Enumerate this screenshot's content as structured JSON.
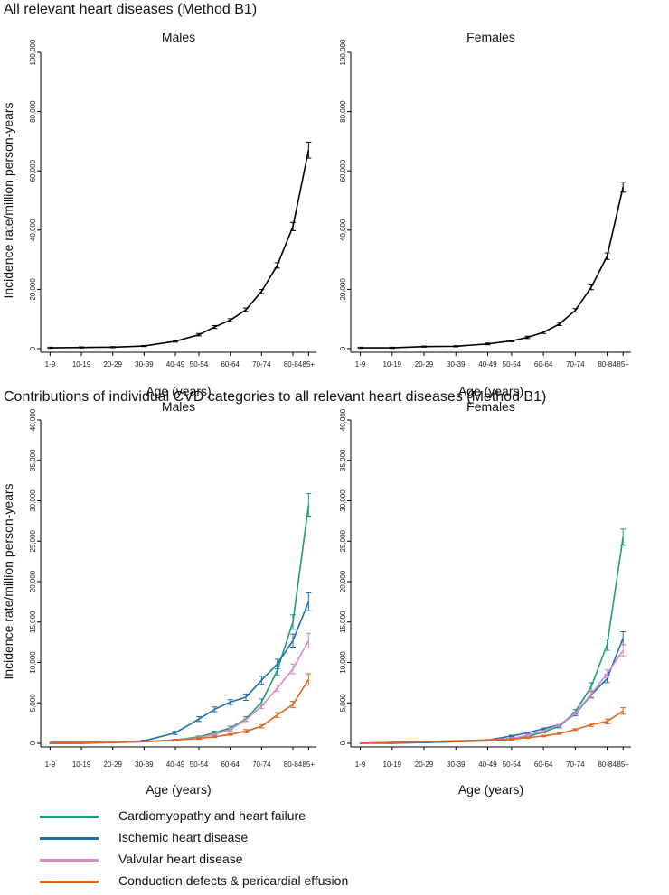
{
  "sections": {
    "top_title": "All relevant heart diseases (Method B1)",
    "bottom_title": "Contributions of individual CVD categories to all relevant heart diseases (Method B1)"
  },
  "legend": [
    {
      "label": "Cardiomyopathy and heart failure",
      "color": "#1b9e77"
    },
    {
      "label": "Ischemic heart disease",
      "color": "#1f6fad"
    },
    {
      "label": "Valvular heart disease",
      "color": "#d889c8"
    },
    {
      "label": "Conduction defects & pericardial effusion",
      "color": "#e0661f"
    }
  ],
  "chart_data": [
    {
      "type": "line",
      "title": "Males",
      "xlabel": "Age (years)",
      "ylabel": "Incidence rate/million person-years",
      "ylim": [
        0,
        100000
      ],
      "yticks": [
        0,
        20000,
        40000,
        60000,
        80000,
        100000
      ],
      "ytick_labels": [
        "0",
        "20,000",
        "40,000",
        "60,000",
        "80,000",
        "100,000"
      ],
      "categories": [
        "1-9",
        "10-19",
        "20-29",
        "30-39",
        "40-49",
        "50-54",
        "55-59",
        "60-64",
        "65-69",
        "70-74",
        "75-79",
        "80-84",
        "85+"
      ],
      "x": [
        5,
        15,
        25,
        35,
        45,
        52.5,
        57.5,
        62.5,
        67.5,
        72.5,
        77.5,
        82.5,
        87.5
      ],
      "xticks": [
        5,
        15,
        25,
        35,
        45,
        52.5,
        62.5,
        72.5,
        82.5,
        87.5
      ],
      "xtick_labels": [
        "1-9",
        "10-19",
        "20-29",
        "30-39",
        "40-49",
        "50-54",
        "60-64",
        "70-74",
        "80-84",
        "85+"
      ],
      "series": [
        {
          "name": "All relevant heart diseases",
          "color": "#000000",
          "values": [
            300,
            400,
            500,
            900,
            2500,
            4700,
            7300,
            9600,
            13100,
            19300,
            28100,
            41200,
            67000
          ],
          "ci": [
            200,
            200,
            200,
            200,
            300,
            400,
            500,
            500,
            600,
            700,
            900,
            1400,
            2700
          ]
        }
      ]
    },
    {
      "type": "line",
      "title": "Females",
      "xlabel": "Age (years)",
      "ylabel": "",
      "ylim": [
        0,
        100000
      ],
      "yticks": [
        0,
        20000,
        40000,
        60000,
        80000,
        100000
      ],
      "ytick_labels": [
        "0",
        "20,000",
        "40,000",
        "60,000",
        "80,000",
        "100,000"
      ],
      "categories": [
        "1-9",
        "10-19",
        "20-29",
        "30-39",
        "40-49",
        "50-54",
        "55-59",
        "60-64",
        "65-69",
        "70-74",
        "75-79",
        "80-84",
        "85+"
      ],
      "x": [
        5,
        15,
        25,
        35,
        45,
        52.5,
        57.5,
        62.5,
        67.5,
        72.5,
        77.5,
        82.5,
        87.5
      ],
      "xticks": [
        5,
        15,
        25,
        35,
        45,
        52.5,
        62.5,
        72.5,
        82.5,
        87.5
      ],
      "xtick_labels": [
        "1-9",
        "10-19",
        "20-29",
        "30-39",
        "40-49",
        "50-54",
        "60-64",
        "70-74",
        "80-84",
        "85+"
      ],
      "series": [
        {
          "name": "All relevant heart diseases",
          "color": "#000000",
          "values": [
            300,
            300,
            700,
            800,
            1600,
            2600,
            3800,
            5500,
            8300,
            12900,
            20700,
            31200,
            54500
          ],
          "ci": [
            200,
            200,
            200,
            200,
            300,
            300,
            400,
            400,
            500,
            600,
            800,
            1100,
            1700
          ]
        }
      ]
    },
    {
      "type": "line",
      "title": "Males",
      "xlabel": "Age (years)",
      "ylabel": "Incidence rate/million person-years",
      "ylim": [
        0,
        40000
      ],
      "yticks": [
        0,
        5000,
        10000,
        15000,
        20000,
        25000,
        30000,
        35000,
        40000
      ],
      "ytick_labels": [
        "0",
        "5,000",
        "10,000",
        "15,000",
        "20,000",
        "25,000",
        "30,000",
        "35,000",
        "40,000"
      ],
      "categories": [
        "1-9",
        "10-19",
        "20-29",
        "30-39",
        "40-49",
        "50-54",
        "55-59",
        "60-64",
        "65-69",
        "70-74",
        "75-79",
        "80-84",
        "85+"
      ],
      "x": [
        5,
        15,
        25,
        35,
        45,
        52.5,
        57.5,
        62.5,
        67.5,
        72.5,
        77.5,
        82.5,
        87.5
      ],
      "xticks": [
        5,
        15,
        25,
        35,
        45,
        52.5,
        62.5,
        72.5,
        82.5,
        87.5
      ],
      "xtick_labels": [
        "1-9",
        "10-19",
        "20-29",
        "30-39",
        "40-49",
        "50-54",
        "60-64",
        "70-74",
        "80-84",
        "85+"
      ],
      "series": [
        {
          "name": "Cardiomyopathy and heart failure",
          "color": "#1b9e77",
          "values": [
            100,
            100,
            100,
            200,
            400,
            800,
            1300,
            1900,
            3000,
            5100,
            9000,
            15000,
            29500
          ],
          "ci": [
            0,
            0,
            0,
            0,
            100,
            100,
            200,
            200,
            300,
            400,
            600,
            900,
            1400
          ]
        },
        {
          "name": "Ischemic heart disease",
          "color": "#1f6fad",
          "values": [
            0,
            0,
            100,
            300,
            1300,
            3000,
            4200,
            5100,
            5700,
            7800,
            9800,
            12700,
            17500
          ],
          "ci": [
            0,
            0,
            0,
            100,
            200,
            300,
            300,
            300,
            400,
            500,
            600,
            800,
            1100
          ]
        },
        {
          "name": "Valvular heart disease",
          "color": "#d889c8",
          "values": [
            100,
            100,
            100,
            200,
            400,
            700,
            1100,
            1700,
            2900,
            4600,
            6800,
            9200,
            12700
          ],
          "ci": [
            0,
            0,
            0,
            0,
            100,
            100,
            100,
            200,
            200,
            300,
            400,
            600,
            900
          ]
        },
        {
          "name": "Conduction defects & pericardial effusion",
          "color": "#e0661f",
          "values": [
            100,
            100,
            100,
            200,
            400,
            600,
            800,
            1100,
            1500,
            2100,
            3500,
            4800,
            7900
          ],
          "ci": [
            0,
            0,
            0,
            0,
            100,
            100,
            100,
            100,
            200,
            200,
            300,
            400,
            700
          ]
        }
      ]
    },
    {
      "type": "line",
      "title": "Females",
      "xlabel": "Age (years)",
      "ylabel": "",
      "ylim": [
        0,
        40000
      ],
      "yticks": [
        0,
        5000,
        10000,
        15000,
        20000,
        25000,
        30000,
        35000,
        40000
      ],
      "ytick_labels": [
        "0",
        "5,000",
        "10,000",
        "15,000",
        "20,000",
        "25,000",
        "30,000",
        "35,000",
        "40,000"
      ],
      "categories": [
        "1-9",
        "10-19",
        "20-29",
        "30-39",
        "40-49",
        "50-54",
        "55-59",
        "60-64",
        "65-69",
        "70-74",
        "75-79",
        "80-84",
        "85+"
      ],
      "x": [
        5,
        15,
        25,
        35,
        45,
        52.5,
        57.5,
        62.5,
        67.5,
        72.5,
        77.5,
        82.5,
        87.5
      ],
      "xticks": [
        5,
        15,
        25,
        35,
        45,
        52.5,
        62.5,
        72.5,
        82.5,
        87.5
      ],
      "xtick_labels": [
        "1-9",
        "10-19",
        "20-29",
        "30-39",
        "40-49",
        "50-54",
        "60-64",
        "70-74",
        "80-84",
        "85+"
      ],
      "series": [
        {
          "name": "Cardiomyopathy and heart failure",
          "color": "#1b9e77",
          "values": [
            0,
            100,
            100,
            200,
            300,
            500,
            800,
            1400,
            2100,
            3900,
            7000,
            12200,
            25500
          ],
          "ci": [
            0,
            0,
            0,
            0,
            0,
            100,
            100,
            100,
            200,
            300,
            500,
            700,
            1000
          ]
        },
        {
          "name": "Ischemic heart disease",
          "color": "#1f6fad",
          "values": [
            0,
            0,
            100,
            200,
            400,
            900,
            1300,
            1800,
            2300,
            3600,
            6000,
            8000,
            13000
          ],
          "ci": [
            0,
            0,
            0,
            0,
            100,
            100,
            100,
            100,
            200,
            200,
            400,
            500,
            800
          ]
        },
        {
          "name": "Valvular heart disease",
          "color": "#d889c8",
          "values": [
            0,
            100,
            200,
            300,
            400,
            600,
            1000,
            1500,
            2300,
            3700,
            6100,
            8600,
            11500
          ],
          "ci": [
            0,
            0,
            0,
            0,
            100,
            100,
            100,
            100,
            200,
            200,
            400,
            500,
            700
          ]
        },
        {
          "name": "Conduction defects & pericardial effusion",
          "color": "#e0661f",
          "values": [
            0,
            100,
            200,
            300,
            400,
            500,
            700,
            900,
            1200,
            1700,
            2300,
            2700,
            4000
          ],
          "ci": [
            0,
            0,
            0,
            0,
            0,
            100,
            100,
            100,
            100,
            100,
            200,
            300,
            400
          ]
        }
      ]
    }
  ]
}
